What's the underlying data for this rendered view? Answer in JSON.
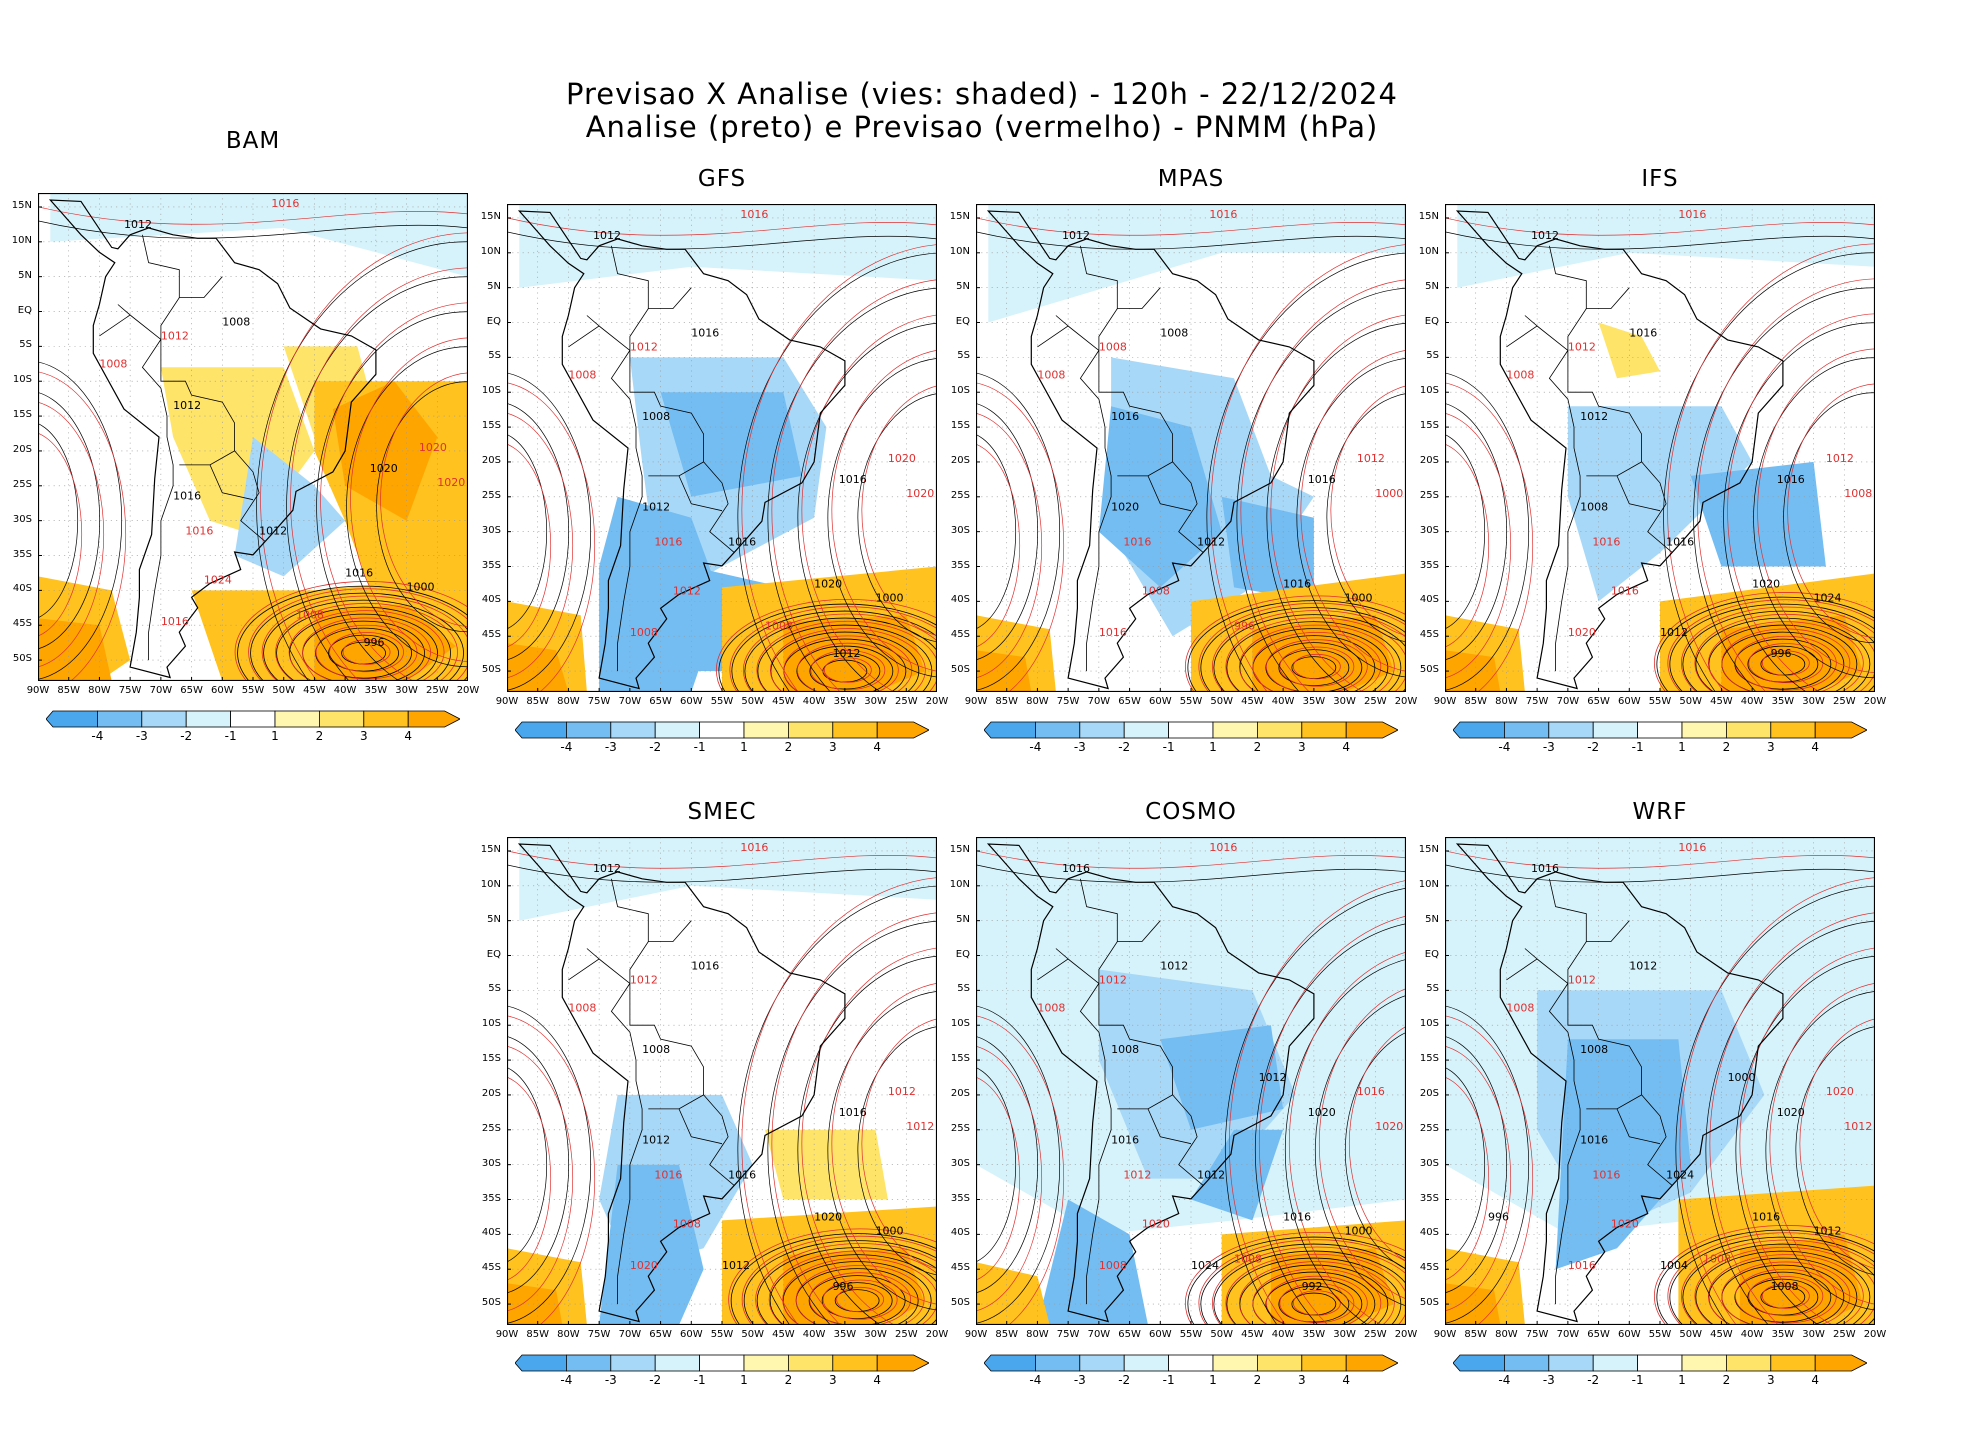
{
  "title": {
    "line1": "Previsao X Analise (vies: shaded) - 120h - 22/12/2024",
    "line2": "Analise (preto) e Previsao (vermelho) - PNMM (hPa)"
  },
  "colors": {
    "analysis_contour": "#000000",
    "forecast_contour": "#e03030",
    "land_outline": "#000000",
    "bias": {
      "-4": "#4aa7ee",
      "-3": "#74bdf2",
      "-2": "#a8d8f7",
      "-1": "#d6f3fb",
      "0": "#ffffff",
      "1": "#fff7b0",
      "2": "#ffe46a",
      "3": "#ffc21e",
      "4": "#ffa500"
    }
  },
  "colorbar_labels": [
    "-4",
    "-3",
    "-2",
    "-1",
    "1",
    "2",
    "3",
    "4"
  ],
  "lat_labels": [
    "15N",
    "10N",
    "5N",
    "EQ",
    "5S",
    "10S",
    "15S",
    "20S",
    "25S",
    "30S",
    "35S",
    "40S",
    "45S",
    "50S"
  ],
  "lon_labels": [
    "90W",
    "85W",
    "80W",
    "75W",
    "70W",
    "65W",
    "60W",
    "55W",
    "50W",
    "45W",
    "40W",
    "35W",
    "30W",
    "25W",
    "20W"
  ],
  "panels": [
    {
      "id": "bam",
      "name": "BAM",
      "analysis_labels": [
        "1012",
        "1008",
        "1012",
        "1016",
        "1020",
        "1016",
        "1012",
        "1000",
        "996"
      ],
      "forecast_labels": [
        "1016",
        "1012",
        "1008",
        "1016",
        "1020",
        "1024",
        "1016",
        "1020",
        "1008"
      ]
    },
    {
      "id": "gfs",
      "name": "GFS",
      "analysis_labels": [
        "1012",
        "1016",
        "1008",
        "1012",
        "1016",
        "1020",
        "1016",
        "1000",
        "1012"
      ],
      "forecast_labels": [
        "1016",
        "1012",
        "1008",
        "1016",
        "1020",
        "1012",
        "1008",
        "1020",
        "1008"
      ]
    },
    {
      "id": "mpas",
      "name": "MPAS",
      "analysis_labels": [
        "1012",
        "1008",
        "1016",
        "1020",
        "1016",
        "1016",
        "1012",
        "1000"
      ],
      "forecast_labels": [
        "1016",
        "1008",
        "1008",
        "1016",
        "1012",
        "1008",
        "1016",
        "1000",
        "996"
      ]
    },
    {
      "id": "ifs",
      "name": "IFS",
      "analysis_labels": [
        "1012",
        "1016",
        "1012",
        "1008",
        "1016",
        "1020",
        "1016",
        "1024",
        "996",
        "1012"
      ],
      "forecast_labels": [
        "1016",
        "1012",
        "1008",
        "1016",
        "1012",
        "1016",
        "1020",
        "1008"
      ]
    },
    {
      "id": "smec",
      "name": "SMEC",
      "analysis_labels": [
        "1012",
        "1016",
        "1008",
        "1012",
        "1016",
        "1020",
        "1016",
        "1000",
        "996",
        "1012"
      ],
      "forecast_labels": [
        "1016",
        "1012",
        "1008",
        "1016",
        "1012",
        "1008",
        "1020",
        "1012"
      ]
    },
    {
      "id": "cosmo",
      "name": "COSMO",
      "analysis_labels": [
        "1016",
        "1012",
        "1008",
        "1016",
        "1020",
        "1016",
        "1012",
        "1000",
        "992",
        "1024",
        "1012"
      ],
      "forecast_labels": [
        "1016",
        "1012",
        "1008",
        "1012",
        "1016",
        "1020",
        "1008",
        "1020",
        "1008"
      ]
    },
    {
      "id": "wrf",
      "name": "WRF",
      "analysis_labels": [
        "1016",
        "1012",
        "1008",
        "1016",
        "1020",
        "1016",
        "1024",
        "1012",
        "1008",
        "1004",
        "1000",
        "996"
      ],
      "forecast_labels": [
        "1016",
        "1012",
        "1008",
        "1016",
        "1020",
        "1020",
        "1016",
        "1012",
        "1008"
      ]
    }
  ],
  "chart_data": {
    "type": "heatmap",
    "title": "Previsao X Analise (vies: shaded) - 120h - 22/12/2024",
    "subtitle": "Analise (preto) e Previsao (vermelho) - PNMM (hPa)",
    "variable": "PNMM (hPa)",
    "bias_levels": [
      -4,
      -3,
      -2,
      -1,
      1,
      2,
      3,
      4
    ],
    "xlim": [
      -90,
      -20
    ],
    "ylim": [
      -53,
      17
    ],
    "models": [
      "BAM",
      "GFS",
      "MPAS",
      "IFS",
      "SMEC",
      "COSMO",
      "WRF"
    ]
  }
}
